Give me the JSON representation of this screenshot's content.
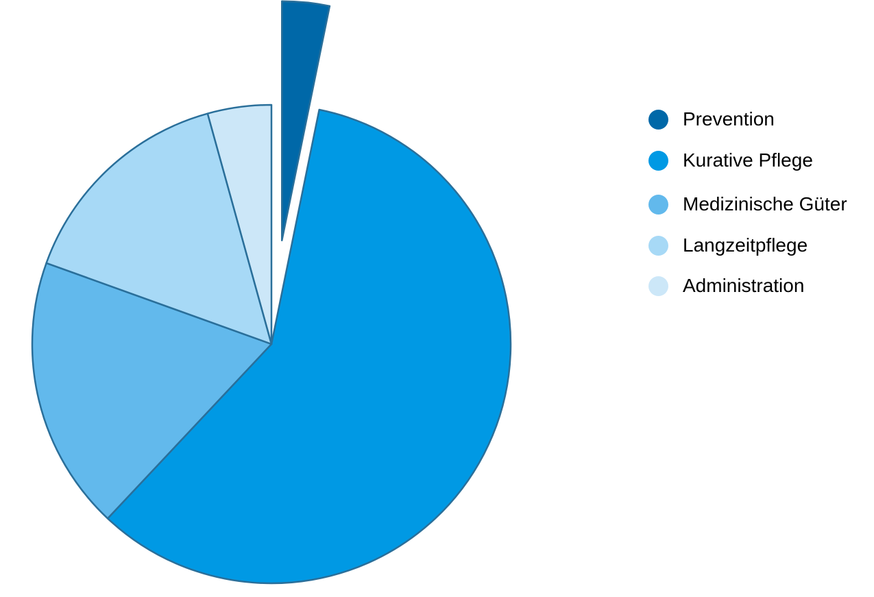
{
  "chart_data": {
    "type": "pie",
    "categories": [
      "Prevention",
      "Kurative Pflege",
      "Medizinische Güter",
      "Langzeitpflege",
      "Administration"
    ],
    "values": [
      3.2,
      58.8,
      18.5,
      15.2,
      4.3
    ],
    "unit": "%",
    "colors": [
      "#0068A8",
      "#0099E4",
      "#62B9EC",
      "#A7D9F6",
      "#CCE7F8"
    ],
    "exploded": [
      "Prevention"
    ],
    "start_angle_deg": 0,
    "direction": "clockwise",
    "legend_position": "right"
  },
  "legend": {
    "items": [
      {
        "label": "Prevention",
        "color": "#0068A8"
      },
      {
        "label": "Kurative Pflege",
        "color": "#0099E4"
      },
      {
        "label": "Medizinische Güter",
        "color": "#62B9EC"
      },
      {
        "label": "Langzeitpflege",
        "color": "#A7D9F6"
      },
      {
        "label": "Administration",
        "color": "#CCE7F8"
      }
    ]
  }
}
